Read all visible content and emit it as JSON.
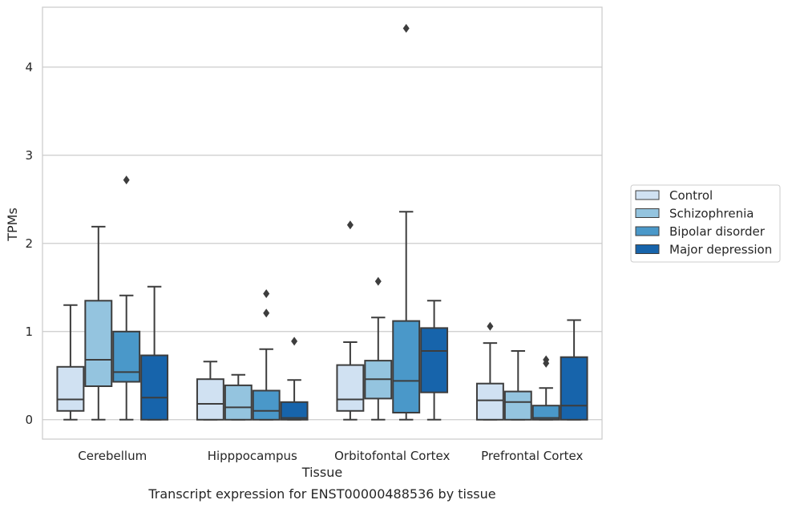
{
  "chart_data": {
    "type": "box",
    "caption": "Transcript expression for ENST00000488536 by tissue",
    "xlabel": "Tissue",
    "ylabel": "TPMs",
    "ylim": [
      -0.22,
      4.68
    ],
    "yticks": [
      0,
      1,
      2,
      3,
      4
    ],
    "grid": "horizontal",
    "legend_position": "right",
    "categories": [
      "Cerebellum",
      "Hipppocampus",
      "Orbitofontal Cortex",
      "Prefrontal Cortex"
    ],
    "series": [
      {
        "name": "Control",
        "color": "#d0e1f2",
        "boxes": [
          {
            "min": 0,
            "q1": 0.1,
            "median": 0.23,
            "q3": 0.6,
            "max": 1.3,
            "outliers": []
          },
          {
            "min": 0,
            "q1": 0,
            "median": 0.18,
            "q3": 0.46,
            "max": 0.66,
            "outliers": []
          },
          {
            "min": 0,
            "q1": 0.1,
            "median": 0.23,
            "q3": 0.62,
            "max": 0.88,
            "outliers": [
              2.21
            ]
          },
          {
            "min": 0,
            "q1": 0,
            "median": 0.22,
            "q3": 0.41,
            "max": 0.87,
            "outliers": [
              1.06
            ]
          }
        ]
      },
      {
        "name": "Schizophrenia",
        "color": "#94c4df",
        "boxes": [
          {
            "min": 0,
            "q1": 0.38,
            "median": 0.68,
            "q3": 1.35,
            "max": 2.19,
            "outliers": []
          },
          {
            "min": 0,
            "q1": 0,
            "median": 0.14,
            "q3": 0.39,
            "max": 0.51,
            "outliers": []
          },
          {
            "min": 0,
            "q1": 0.24,
            "median": 0.46,
            "q3": 0.67,
            "max": 1.16,
            "outliers": [
              1.57
            ]
          },
          {
            "min": 0,
            "q1": 0,
            "median": 0.2,
            "q3": 0.32,
            "max": 0.78,
            "outliers": []
          }
        ]
      },
      {
        "name": "Bipolar disorder",
        "color": "#4a98c9",
        "boxes": [
          {
            "min": 0,
            "q1": 0.43,
            "median": 0.54,
            "q3": 1.0,
            "max": 1.41,
            "outliers": [
              2.72
            ]
          },
          {
            "min": 0,
            "q1": 0,
            "median": 0.1,
            "q3": 0.33,
            "max": 0.8,
            "outliers": [
              1.43,
              1.21
            ]
          },
          {
            "min": 0,
            "q1": 0.08,
            "median": 0.44,
            "q3": 1.12,
            "max": 2.36,
            "outliers": [
              4.44
            ]
          },
          {
            "min": 0,
            "q1": 0,
            "median": 0.02,
            "q3": 0.16,
            "max": 0.36,
            "outliers": [
              0.68,
              0.64
            ]
          }
        ]
      },
      {
        "name": "Major depression",
        "color": "#1764ab",
        "boxes": [
          {
            "min": 0,
            "q1": 0,
            "median": 0.25,
            "q3": 0.73,
            "max": 1.51,
            "outliers": []
          },
          {
            "min": 0,
            "q1": 0,
            "median": 0.02,
            "q3": 0.2,
            "max": 0.45,
            "outliers": [
              0.89
            ]
          },
          {
            "min": 0,
            "q1": 0.31,
            "median": 0.78,
            "q3": 1.04,
            "max": 1.35,
            "outliers": []
          },
          {
            "min": 0,
            "q1": 0,
            "median": 0.16,
            "q3": 0.71,
            "max": 1.13,
            "outliers": []
          }
        ]
      }
    ]
  },
  "style": {
    "grid_color": "#cccccc",
    "frame_color": "#cccccc",
    "box_edge_color": "#3d3d3d",
    "text_color": "#262626"
  }
}
